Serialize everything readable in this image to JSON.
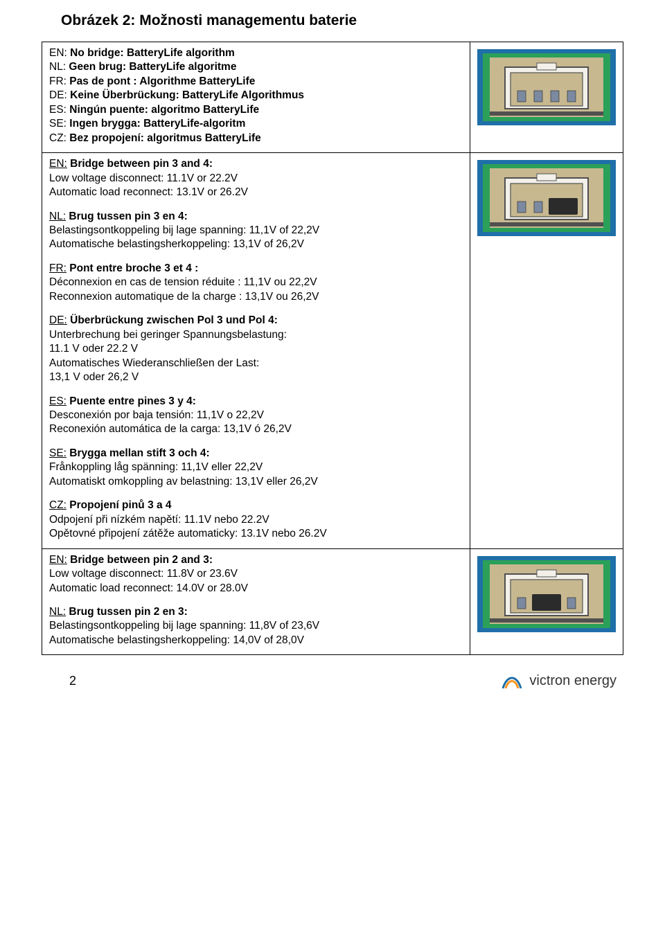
{
  "title": "Obrázek 2: Možnosti managementu baterie",
  "page_number": "2",
  "logo": {
    "text": "victron energy",
    "color": "#333333"
  },
  "connector_colors": {
    "frame_outer": "#1f6fa8",
    "frame_mid": "#2aa058",
    "body": "#c7b890",
    "shadow": "#505050",
    "pin": "#7b8aa0",
    "jumper": "#2b2b2b",
    "gap": "#f2f0e8"
  },
  "rows": [
    {
      "jumper": null,
      "sections": [
        {
          "lines": [
            {
              "pre": "EN:",
              "bold": " No bridge: BatteryLife algorithm"
            },
            {
              "pre": "NL:",
              "bold": " Geen brug: BatteryLife algoritme"
            },
            {
              "pre": "FR:",
              "bold": " Pas de pont : Algorithme BatteryLife"
            },
            {
              "pre": "DE:",
              "bold": " Keine Überbrückung: BatteryLife Algorithmus"
            },
            {
              "pre": "ES:",
              "bold": " Ningún puente: algoritmo BatteryLife"
            },
            {
              "pre": "SE:",
              "bold": " Ingen brygga: BatteryLife-algoritm"
            },
            {
              "pre": "CZ:",
              "bold": " Bez propojení: algoritmus BatteryLife"
            }
          ]
        }
      ]
    },
    {
      "jumper": [
        2,
        3
      ],
      "sections": [
        {
          "lines": [
            {
              "pre_u": "EN:",
              "bold": " Bridge between pin 3 and 4:"
            },
            {
              "plain": "Low voltage disconnect: 11.1V or 22.2V"
            },
            {
              "plain": "Automatic load reconnect: 13.1V or 26.2V"
            }
          ]
        },
        {
          "lines": [
            {
              "pre_u": "NL:",
              "bold": " Brug tussen pin 3 en 4:"
            },
            {
              "plain": "Belastingsontkoppeling bij lage spanning: 11,1V of 22,2V"
            },
            {
              "plain": "Automatische belastingsherkoppeling: 13,1V of 26,2V"
            }
          ]
        },
        {
          "lines": [
            {
              "pre_u": "FR:",
              "bold": " Pont entre broche 3 et 4 :"
            },
            {
              "plain": "Déconnexion en cas de tension réduite : 11,1V ou 22,2V"
            },
            {
              "plain": "Reconnexion automatique de la charge : 13,1V ou 26,2V"
            }
          ]
        },
        {
          "lines": [
            {
              "pre_u": "DE:",
              "bold": " Überbrückung zwischen Pol 3 und Pol 4:"
            },
            {
              "plain": "Unterbrechung bei geringer Spannungsbelastung:"
            },
            {
              "plain": "11.1 V oder 22.2 V"
            },
            {
              "plain": "Automatisches Wiederanschließen der Last:"
            },
            {
              "plain": "13,1 V oder 26,2 V"
            }
          ]
        },
        {
          "lines": [
            {
              "pre_u": "ES:",
              "bold": " Puente entre pines 3 y 4:"
            },
            {
              "plain": "Desconexión por baja tensión: 11,1V o 22,2V"
            },
            {
              "plain": "Reconexión automática de la carga: 13,1V ó 26,2V"
            }
          ]
        },
        {
          "lines": [
            {
              "pre_u": "SE:",
              "bold": " Brygga mellan stift 3 och 4:"
            },
            {
              "plain": "Frånkoppling låg spänning: 11,1V eller 22,2V"
            },
            {
              "plain": "Automatiskt omkoppling av belastning: 13,1V eller 26,2V"
            }
          ]
        },
        {
          "lines": [
            {
              "pre_u": "CZ:",
              "bold": " Propojení pinů 3 a 4"
            },
            {
              "plain": "Odpojení při nízkém napětí: 11.1V nebo 22.2V"
            },
            {
              "plain": "Opětovné připojení zátěže automaticky: 13.1V nebo 26.2V"
            }
          ]
        }
      ]
    },
    {
      "jumper": [
        1,
        2
      ],
      "sections": [
        {
          "lines": [
            {
              "pre_u": "EN:",
              "bold": " Bridge between pin 2 and 3:"
            },
            {
              "plain": "Low voltage disconnect: 11.8V or 23.6V"
            },
            {
              "plain": "Automatic load reconnect: 14.0V or 28.0V"
            }
          ]
        },
        {
          "lines": [
            {
              "pre_u": "NL:",
              "bold": " Brug tussen pin 2 en 3:"
            },
            {
              "plain": "Belastingsontkoppeling bij lage spanning: 11,8V of 23,6V"
            },
            {
              "plain": "Automatische belastingsherkoppeling: 14,0V of 28,0V"
            }
          ]
        }
      ]
    }
  ]
}
